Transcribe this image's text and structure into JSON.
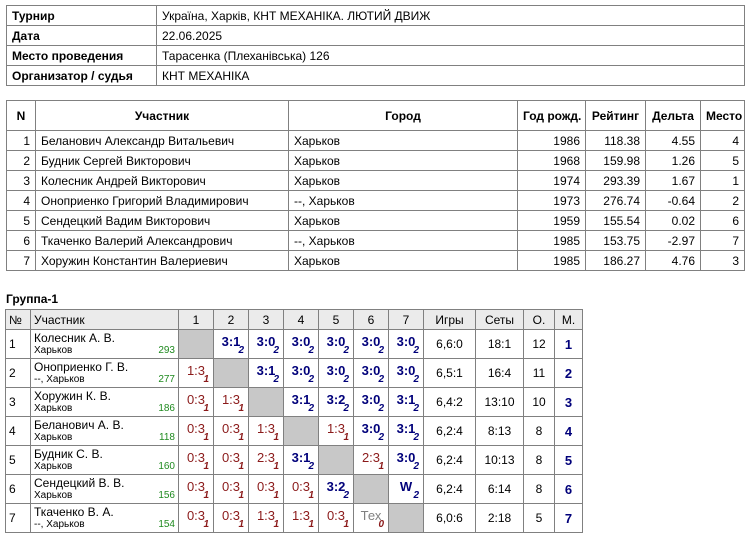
{
  "info": {
    "rows": [
      [
        "Турнир",
        "Україна, Харків, КНТ МЕХАНІКА. ЛЮТИЙ ДВИЖ"
      ],
      [
        "Дата",
        "22.06.2025"
      ],
      [
        "Место проведения",
        "Тарасенка (Плеханівська) 126"
      ],
      [
        "Организатор / судья",
        "КНТ МЕХАНІКА"
      ]
    ]
  },
  "participants": {
    "header": [
      "N",
      "Участник",
      "Город",
      "Год рожд.",
      "Рейтинг",
      "Дельта",
      "Место"
    ],
    "rows": [
      [
        1,
        "Беланович Александр Витальевич",
        "Харьков",
        1986,
        118.38,
        4.55,
        4
      ],
      [
        2,
        "Будник Сергей Викторович",
        "Харьков",
        1968,
        159.98,
        1.26,
        5
      ],
      [
        3,
        "Колесник Андрей Викторович",
        "Харьков",
        1974,
        293.39,
        1.67,
        1
      ],
      [
        4,
        "Оноприенко Григорий Владимирович",
        "--, Харьков",
        1973,
        276.74,
        -0.64,
        2
      ],
      [
        5,
        "Сендецкий Вадим Викторович",
        "Харьков",
        1959,
        155.54,
        0.02,
        6
      ],
      [
        6,
        "Ткаченко Валерий Александрович",
        "--, Харьков",
        1985,
        153.75,
        -2.97,
        7
      ],
      [
        7,
        "Хоружин Константин Валериевич",
        "Харьков",
        1985,
        186.27,
        4.76,
        3
      ]
    ]
  },
  "group": {
    "title": "Группа-1",
    "header": [
      "№",
      "Участник",
      "1",
      "2",
      "3",
      "4",
      "5",
      "6",
      "7",
      "Игры",
      "Сеты",
      "О.",
      "М."
    ],
    "rows": [
      {
        "n": 1,
        "name": "Колесник А. В.",
        "city": "Харьков",
        "rating": 293,
        "results": [
          null,
          {
            "score": "3:1",
            "points": 2
          },
          {
            "score": "3:0",
            "points": 2
          },
          {
            "score": "3:0",
            "points": 2
          },
          {
            "score": "3:0",
            "points": 2
          },
          {
            "score": "3:0",
            "points": 2
          },
          {
            "score": "3:0",
            "points": 2
          }
        ],
        "games": "6,6:0",
        "sets": "18:1",
        "score": 12,
        "place": 1
      },
      {
        "n": 2,
        "name": "Оноприенко Г. В.",
        "city": "--, Харьков",
        "rating": 277,
        "results": [
          {
            "score": "1:3",
            "points": 1
          },
          null,
          {
            "score": "3:1",
            "points": 2
          },
          {
            "score": "3:0",
            "points": 2
          },
          {
            "score": "3:0",
            "points": 2
          },
          {
            "score": "3:0",
            "points": 2
          },
          {
            "score": "3:0",
            "points": 2
          }
        ],
        "games": "6,5:1",
        "sets": "16:4",
        "score": 11,
        "place": 2
      },
      {
        "n": 3,
        "name": "Хоружин К. В.",
        "city": "Харьков",
        "rating": 186,
        "results": [
          {
            "score": "0:3",
            "points": 1
          },
          {
            "score": "1:3",
            "points": 1
          },
          null,
          {
            "score": "3:1",
            "points": 2
          },
          {
            "score": "3:2",
            "points": 2
          },
          {
            "score": "3:0",
            "points": 2
          },
          {
            "score": "3:1",
            "points": 2
          }
        ],
        "games": "6,4:2",
        "sets": "13:10",
        "score": 10,
        "place": 3
      },
      {
        "n": 4,
        "name": "Беланович А. В.",
        "city": "Харьков",
        "rating": 118,
        "results": [
          {
            "score": "0:3",
            "points": 1
          },
          {
            "score": "0:3",
            "points": 1
          },
          {
            "score": "1:3",
            "points": 1
          },
          null,
          {
            "score": "1:3",
            "points": 1
          },
          {
            "score": "3:0",
            "points": 2
          },
          {
            "score": "3:1",
            "points": 2
          }
        ],
        "games": "6,2:4",
        "sets": "8:13",
        "score": 8,
        "place": 4
      },
      {
        "n": 5,
        "name": "Будник С. В.",
        "city": "Харьков",
        "rating": 160,
        "results": [
          {
            "score": "0:3",
            "points": 1
          },
          {
            "score": "0:3",
            "points": 1
          },
          {
            "score": "2:3",
            "points": 1
          },
          {
            "score": "3:1",
            "points": 2
          },
          null,
          {
            "score": "2:3",
            "points": 1
          },
          {
            "score": "3:0",
            "points": 2
          }
        ],
        "games": "6,2:4",
        "sets": "10:13",
        "score": 8,
        "place": 5
      },
      {
        "n": 6,
        "name": "Сендецкий В. В.",
        "city": "Харьков",
        "rating": 156,
        "results": [
          {
            "score": "0:3",
            "points": 1
          },
          {
            "score": "0:3",
            "points": 1
          },
          {
            "score": "0:3",
            "points": 1
          },
          {
            "score": "0:3",
            "points": 1
          },
          {
            "score": "3:2",
            "points": 2
          },
          null,
          {
            "score": "W",
            "points": 2
          }
        ],
        "games": "6,2:4",
        "sets": "6:14",
        "score": 8,
        "place": 6
      },
      {
        "n": 7,
        "name": "Ткаченко В. А.",
        "city": "--, Харьков",
        "rating": 154,
        "results": [
          {
            "score": "0:3",
            "points": 1
          },
          {
            "score": "0:3",
            "points": 1
          },
          {
            "score": "1:3",
            "points": 1
          },
          {
            "score": "1:3",
            "points": 1
          },
          {
            "score": "0:3",
            "points": 1
          },
          {
            "score": "Тех",
            "points": 0
          },
          null
        ],
        "games": "6,0:6",
        "sets": "2:18",
        "score": 5,
        "place": 7
      }
    ]
  }
}
